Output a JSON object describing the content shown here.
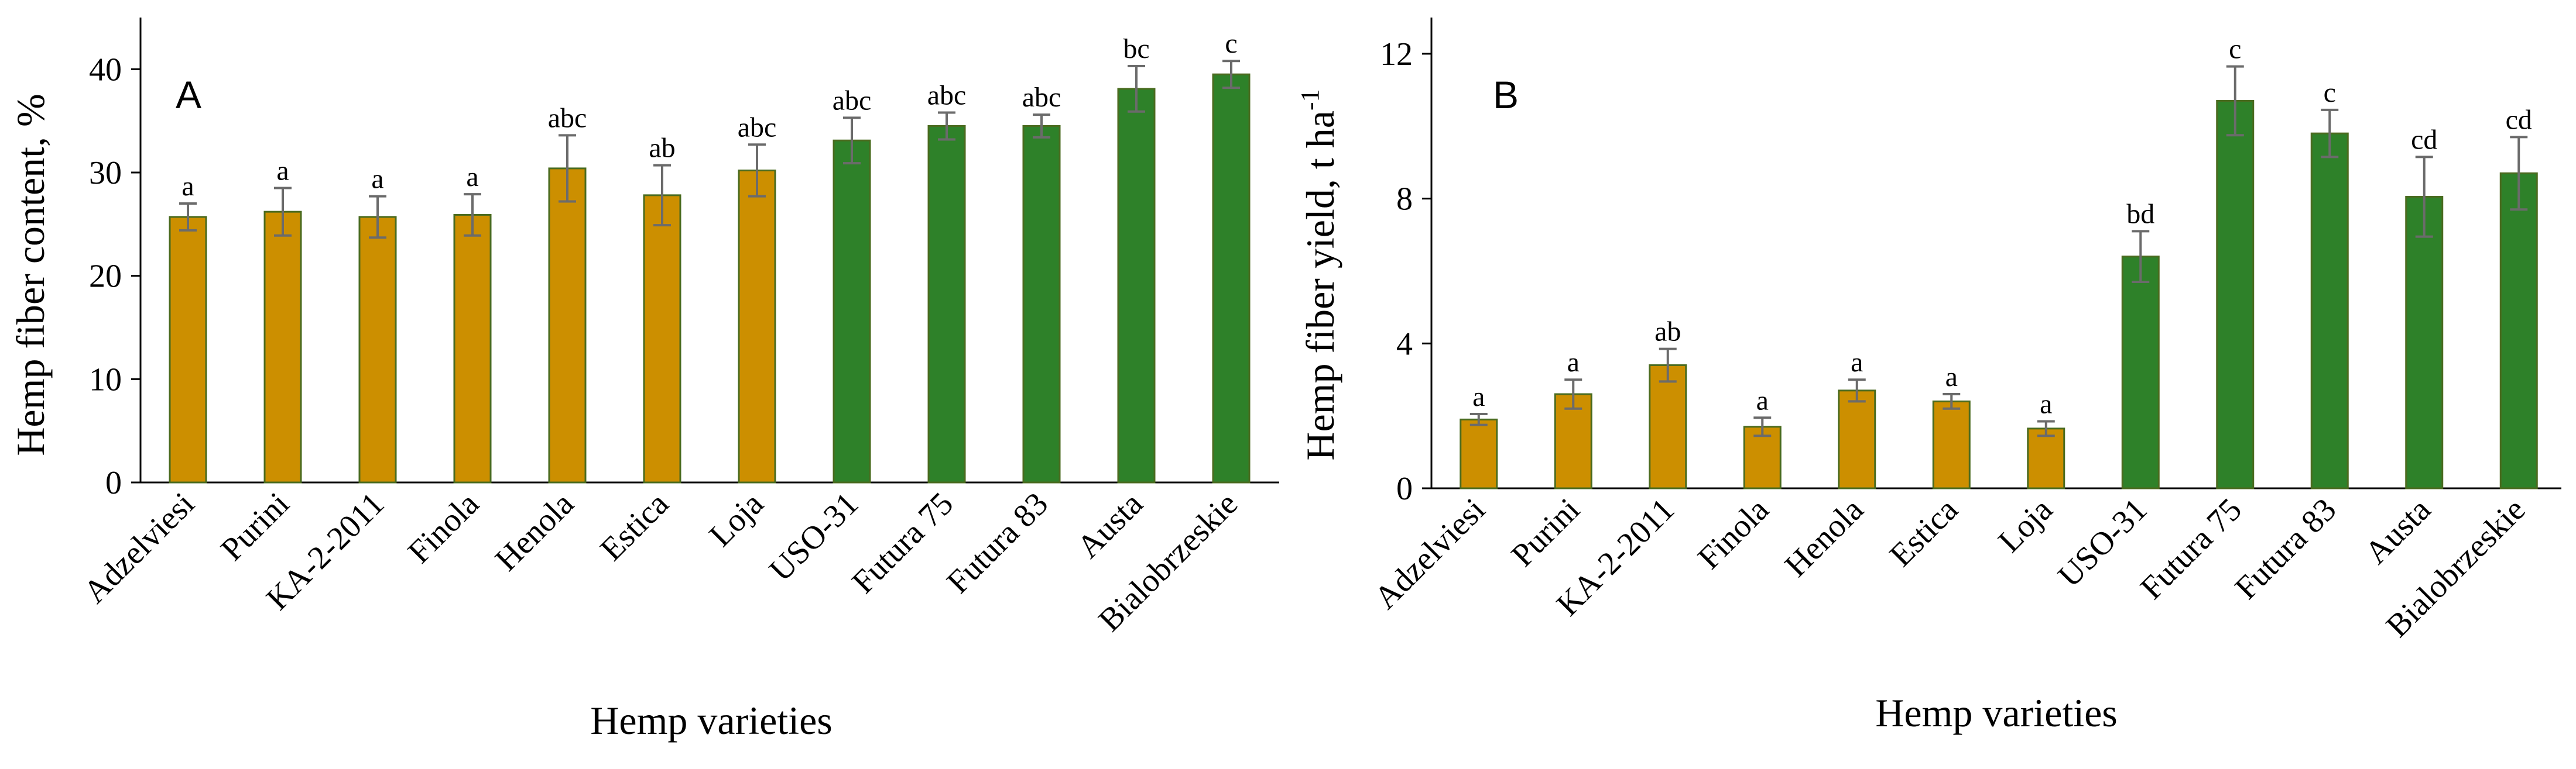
{
  "chart_data": [
    {
      "type": "bar",
      "panel": "A",
      "title": "",
      "xlabel": "Hemp varieties",
      "ylabel": "Hemp fiber content, %",
      "ylim": [
        0,
        45
      ],
      "yticks": [
        0,
        10,
        20,
        30,
        40
      ],
      "grid": false,
      "categories": [
        "Adzelviesi",
        "Purini",
        "KA-2-2011",
        "Finola",
        "Henola",
        "Estica",
        "Loja",
        "USO-31",
        "Futura 75",
        "Futura 83",
        "Austa",
        "Bialobrzeskie"
      ],
      "values": [
        25.7,
        26.2,
        25.7,
        25.9,
        30.4,
        27.8,
        30.2,
        33.1,
        34.5,
        34.5,
        38.1,
        39.5
      ],
      "errors": [
        1.3,
        2.3,
        2.0,
        2.0,
        3.2,
        2.9,
        2.5,
        2.2,
        1.3,
        1.1,
        2.2,
        1.3
      ],
      "labels": [
        "a",
        "a",
        "a",
        "a",
        "abc",
        "ab",
        "abc",
        "abc",
        "abc",
        "abc",
        "bc",
        "c"
      ],
      "colors": [
        "#cc8f00",
        "#cc8f00",
        "#cc8f00",
        "#cc8f00",
        "#cc8f00",
        "#cc8f00",
        "#cc8f00",
        "#2e8129",
        "#2e8129",
        "#2e8129",
        "#2e8129",
        "#2e8129"
      ]
    },
    {
      "type": "bar",
      "panel": "B",
      "title": "",
      "xlabel": "Hemp varieties",
      "ylabel": "Hemp fiber yield, t ha",
      "ylabel_sup": "-1",
      "ylim": [
        0,
        13
      ],
      "yticks": [
        0,
        4,
        8,
        12
      ],
      "grid": false,
      "categories": [
        "Adzelviesi",
        "Purini",
        "KA-2-2011",
        "Finola",
        "Henola",
        "Estica",
        "Loja",
        "USO-31",
        "Futura 75",
        "Futura 83",
        "Austa",
        "Bialobrzeskie"
      ],
      "values": [
        1.9,
        2.6,
        3.4,
        1.7,
        2.7,
        2.4,
        1.65,
        6.4,
        10.7,
        9.8,
        8.05,
        8.7
      ],
      "errors": [
        0.15,
        0.4,
        0.45,
        0.25,
        0.3,
        0.2,
        0.2,
        0.7,
        0.95,
        0.65,
        1.1,
        1.0
      ],
      "labels": [
        "a",
        "a",
        "ab",
        "a",
        "a",
        "a",
        "a",
        "bd",
        "c",
        "c",
        "cd",
        "cd"
      ],
      "colors": [
        "#cc8f00",
        "#cc8f00",
        "#cc8f00",
        "#cc8f00",
        "#cc8f00",
        "#cc8f00",
        "#cc8f00",
        "#2e8129",
        "#2e8129",
        "#2e8129",
        "#2e8129",
        "#2e8129"
      ]
    }
  ],
  "colors": {
    "amber_bar": "#cc8f00",
    "green_bar": "#2e8129",
    "bar_outline": "#4a6b1f",
    "error_bar": "#6b6b6b",
    "axis": "#000000"
  }
}
